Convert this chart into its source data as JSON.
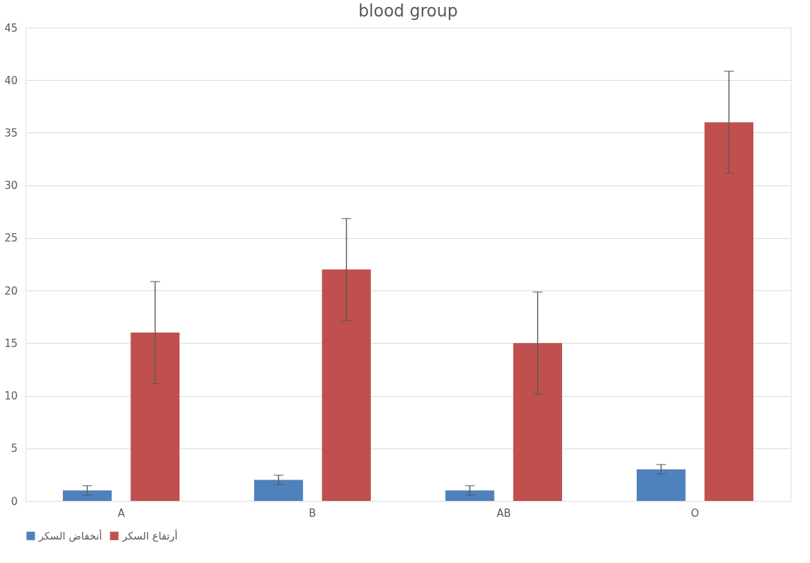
{
  "chart_data": {
    "type": "bar",
    "title": "blood group",
    "categories": [
      "A",
      "B",
      "AB",
      "O"
    ],
    "series": [
      {
        "name": "أنخفاض السكر",
        "color": "#4f81bd",
        "values": [
          1,
          2,
          1,
          3
        ],
        "errors": [
          0.45,
          0.45,
          0.45,
          0.45
        ]
      },
      {
        "name": "أرتفاع السكر",
        "color": "#c0504d",
        "values": [
          16,
          22,
          15,
          36
        ],
        "errors": [
          4.85,
          4.85,
          4.85,
          4.85
        ]
      }
    ],
    "ylim": [
      0,
      45
    ],
    "yticks": [
      0,
      5,
      10,
      15,
      20,
      25,
      30,
      35,
      40,
      45
    ],
    "grid": "y",
    "legend": "bottom"
  }
}
